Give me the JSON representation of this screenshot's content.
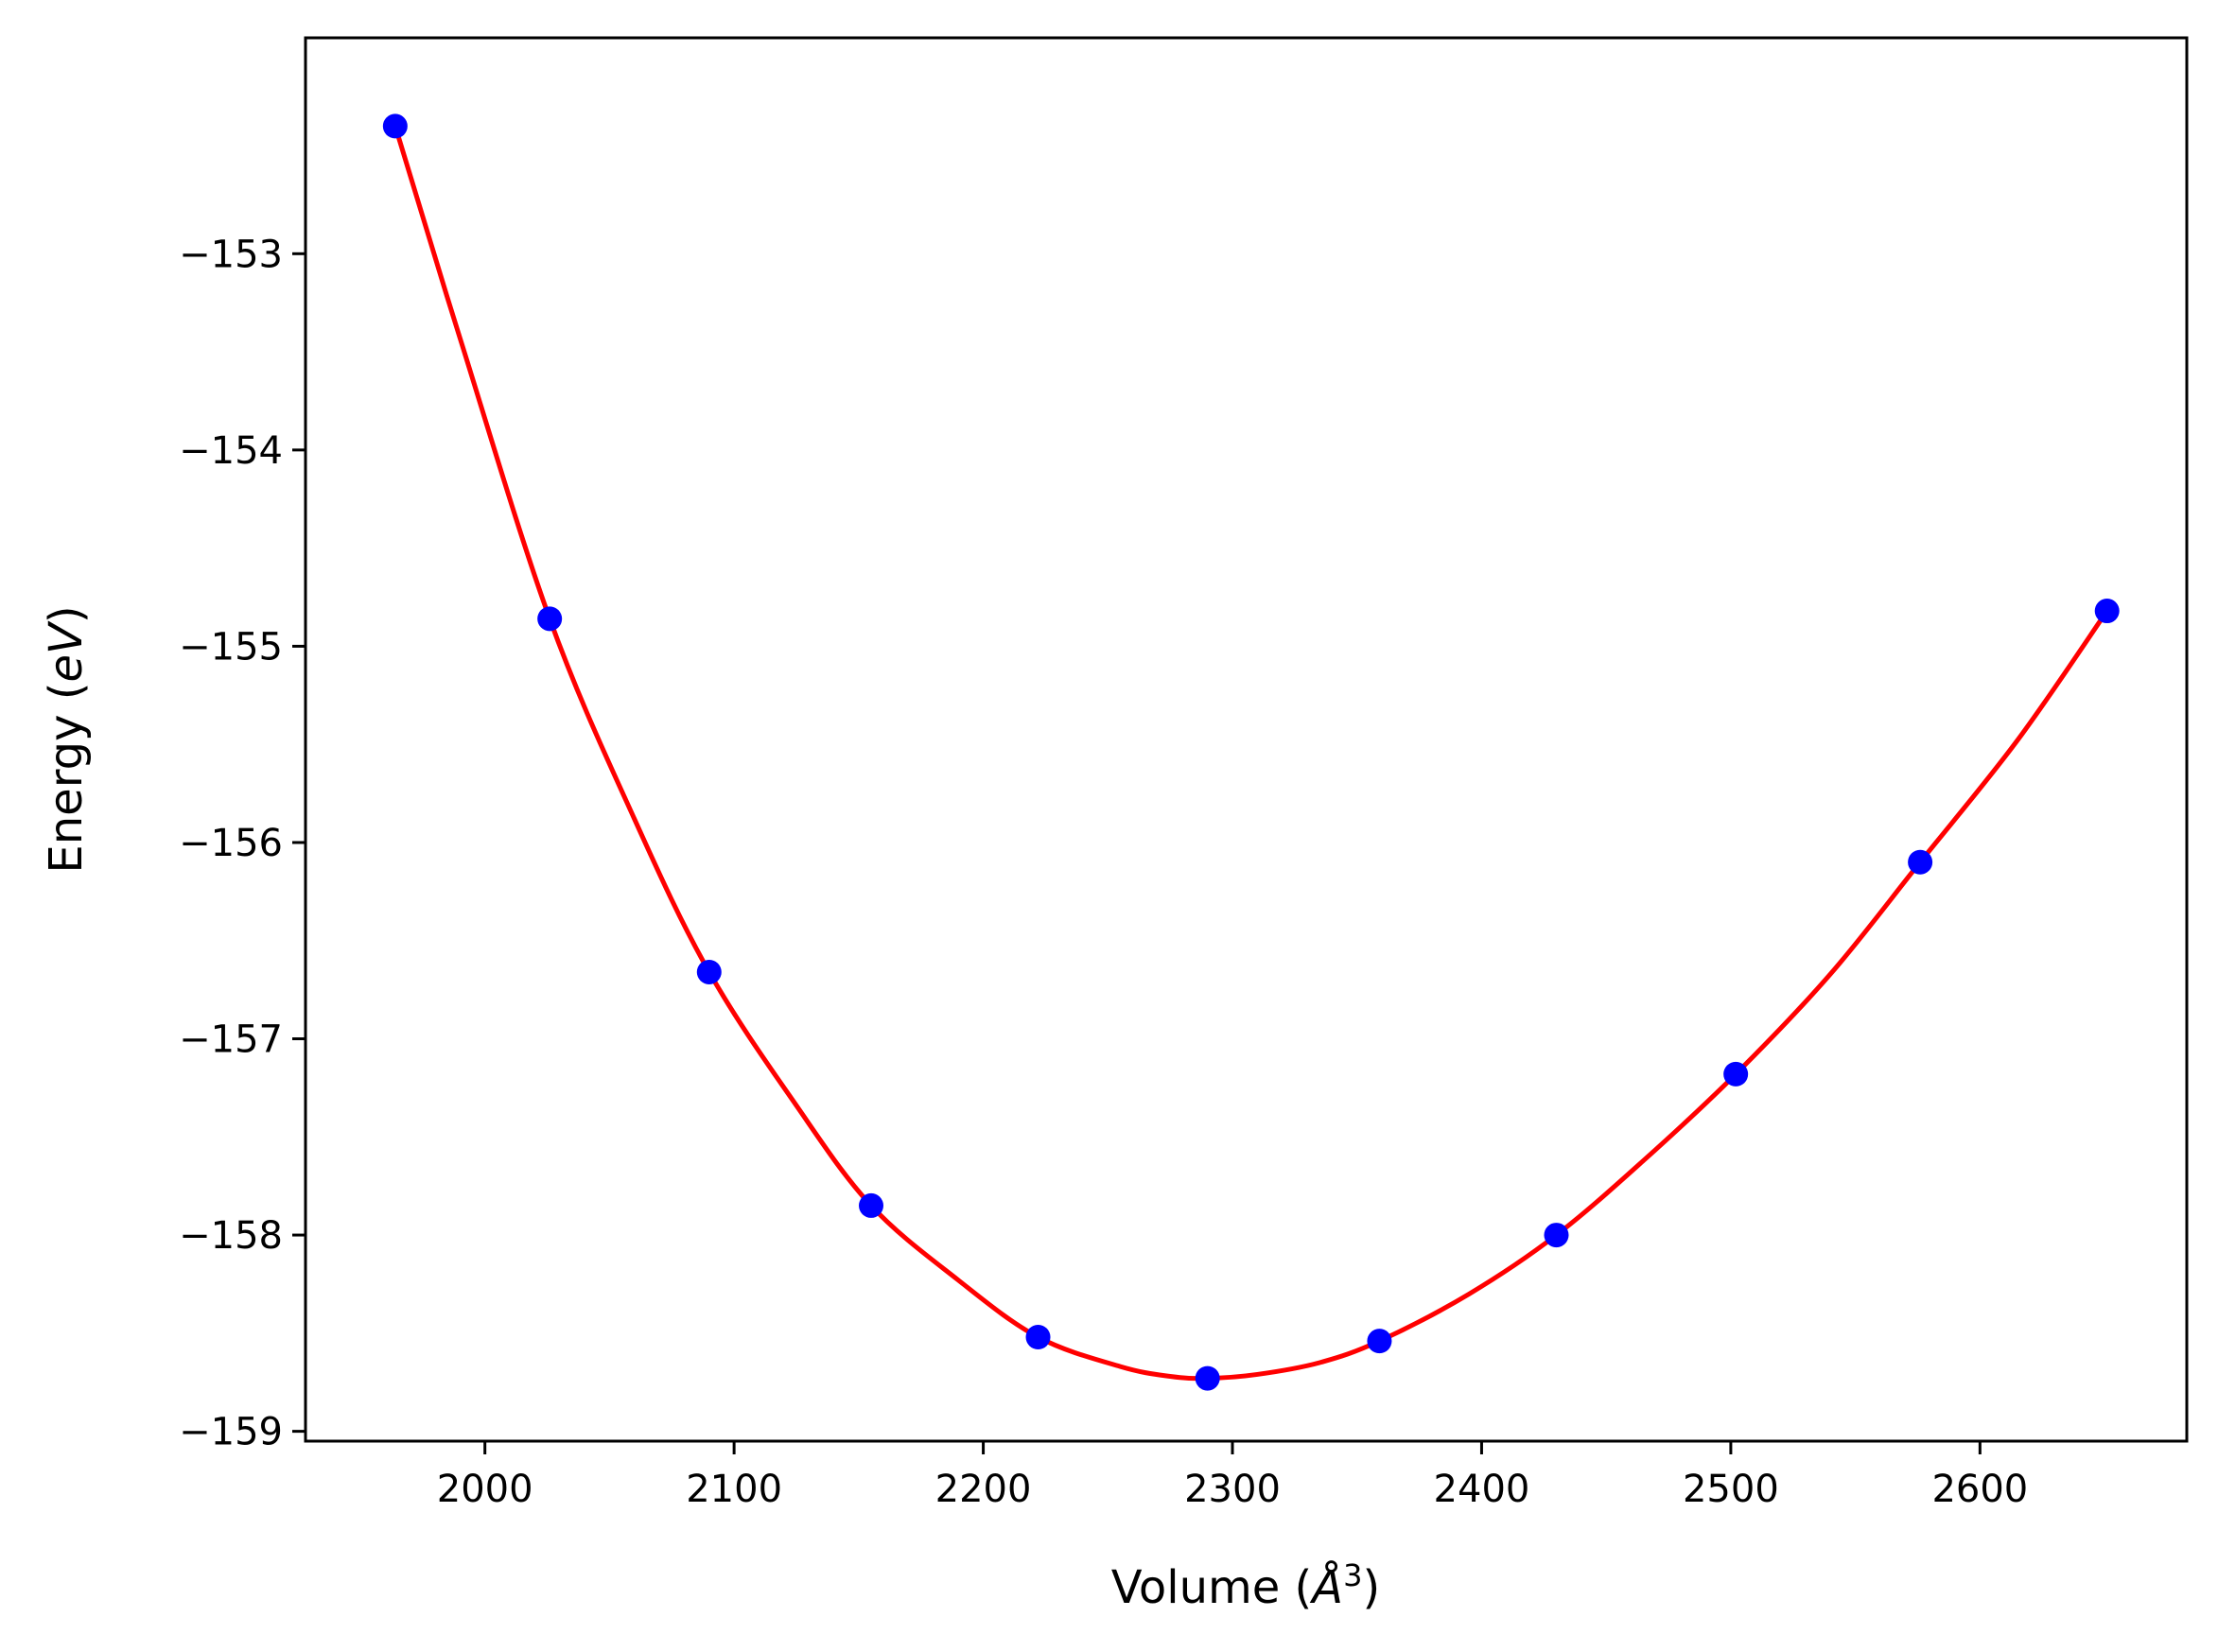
{
  "chart_data": {
    "type": "scatter",
    "xlabel": "Volume (",
    "xlabel_symbol": "Å",
    "xlabel_exponent": "3",
    "xlabel_close": ")",
    "ylabel": "Energy (",
    "ylabel_unit": "eV",
    "ylabel_close": ")",
    "xlim": [
      1928,
      2683
    ],
    "ylim": [
      -159.05,
      -151.9
    ],
    "x_ticks": [
      2000,
      2100,
      2200,
      2300,
      2400,
      2500,
      2600
    ],
    "x_tick_labels": [
      "2000",
      "2100",
      "2200",
      "2300",
      "2400",
      "2500",
      "2600"
    ],
    "y_ticks": [
      -153,
      -154,
      -155,
      -156,
      -157,
      -158,
      -159
    ],
    "y_tick_labels": [
      "−153",
      "−154",
      "−155",
      "−156",
      "−157",
      "−158",
      "−159"
    ],
    "grid": false,
    "series": [
      {
        "kind": "points",
        "color": "#0000ff",
        "x": [
          1964,
          2026,
          2090,
          2155,
          2222,
          2290,
          2359,
          2430,
          2502,
          2576,
          2651
        ],
        "y": [
          -152.35,
          -154.86,
          -156.66,
          -157.85,
          -158.52,
          -158.73,
          -158.54,
          -158.0,
          -157.18,
          -156.1,
          -154.82
        ]
      },
      {
        "kind": "fit-line",
        "color": "#ff0000",
        "x": [
          1964,
          1990,
          2026,
          2060,
          2090,
          2125,
          2155,
          2190,
          2222,
          2255,
          2275,
          2290,
          2310,
          2335,
          2359,
          2395,
          2430,
          2465,
          2502,
          2540,
          2576,
          2615,
          2651
        ],
        "y": [
          -152.35,
          -153.43,
          -154.86,
          -155.88,
          -156.66,
          -157.34,
          -157.85,
          -158.23,
          -158.52,
          -158.67,
          -158.72,
          -158.73,
          -158.71,
          -158.65,
          -158.54,
          -158.3,
          -158.0,
          -157.62,
          -157.18,
          -156.67,
          -156.1,
          -155.48,
          -154.82
        ]
      }
    ]
  }
}
